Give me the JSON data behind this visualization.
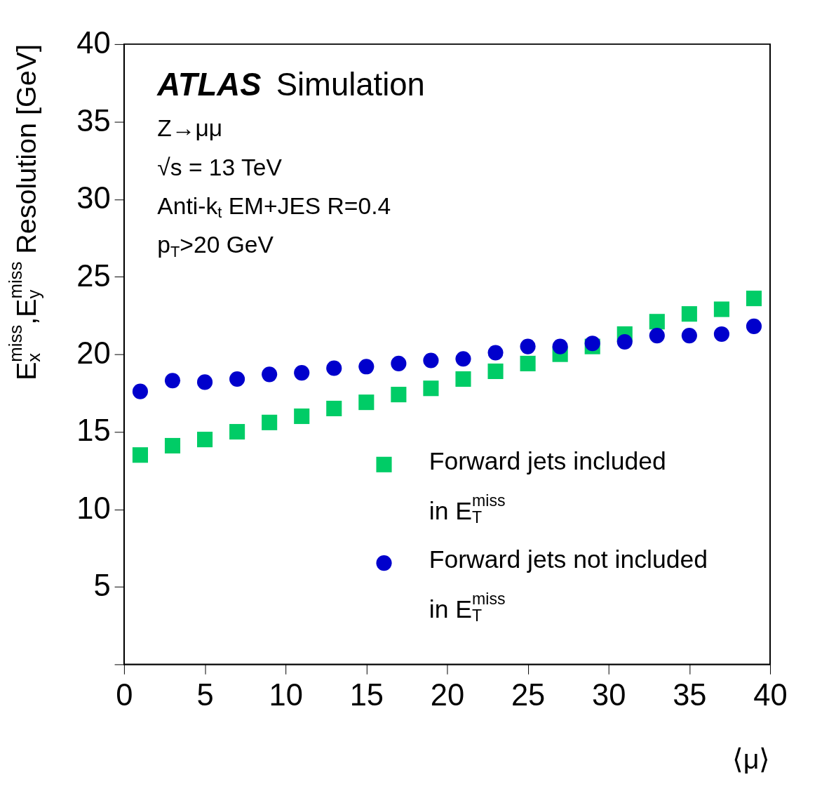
{
  "chart_data": {
    "type": "scatter",
    "xlabel": "⟨μ⟩",
    "ylabel": "E$_{x}$$^{miss}$,E$_{y}$$^{miss}$ Resolution [GeV]",
    "annotations": [
      "ATLAS Simulation",
      "Z→μμ",
      "√s = 13 TeV",
      "Anti-k$_{t}$ EM+JES R=0.4",
      "p$_{T}$>20 GeV"
    ],
    "x": [
      1,
      3,
      5,
      7,
      9,
      11,
      13,
      15,
      17,
      19,
      21,
      23,
      25,
      27,
      29,
      31,
      33,
      35,
      37,
      39
    ],
    "series": [
      {
        "name": "Forward jets included\nin E$_{T}$$^{miss}$",
        "color": "#00cc66",
        "marker": "square",
        "values": [
          13.5,
          14.1,
          14.5,
          15.0,
          15.6,
          16.0,
          16.5,
          16.9,
          17.4,
          17.8,
          18.4,
          18.9,
          19.4,
          20.0,
          20.5,
          21.3,
          22.1,
          22.6,
          22.9,
          23.6
        ]
      },
      {
        "name": "Forward jets not included\nin E$_{T}$$^{miss}$",
        "color": "#0000cc",
        "marker": "circle",
        "values": [
          17.6,
          18.3,
          18.2,
          18.4,
          18.7,
          18.8,
          19.1,
          19.2,
          19.4,
          19.6,
          19.7,
          20.1,
          20.5,
          20.5,
          20.7,
          20.8,
          21.2,
          21.2,
          21.3,
          21.8
        ]
      }
    ],
    "xlim": [
      0,
      40
    ],
    "xticks": [
      0,
      5,
      10,
      15,
      20,
      25,
      30,
      35,
      40
    ],
    "ylim": [
      0,
      40
    ],
    "yticks": [
      {
        "value": 0,
        "label": null
      },
      5,
      10,
      15,
      20,
      25,
      30,
      35,
      40
    ],
    "grid": false,
    "legend": "bottom right"
  }
}
